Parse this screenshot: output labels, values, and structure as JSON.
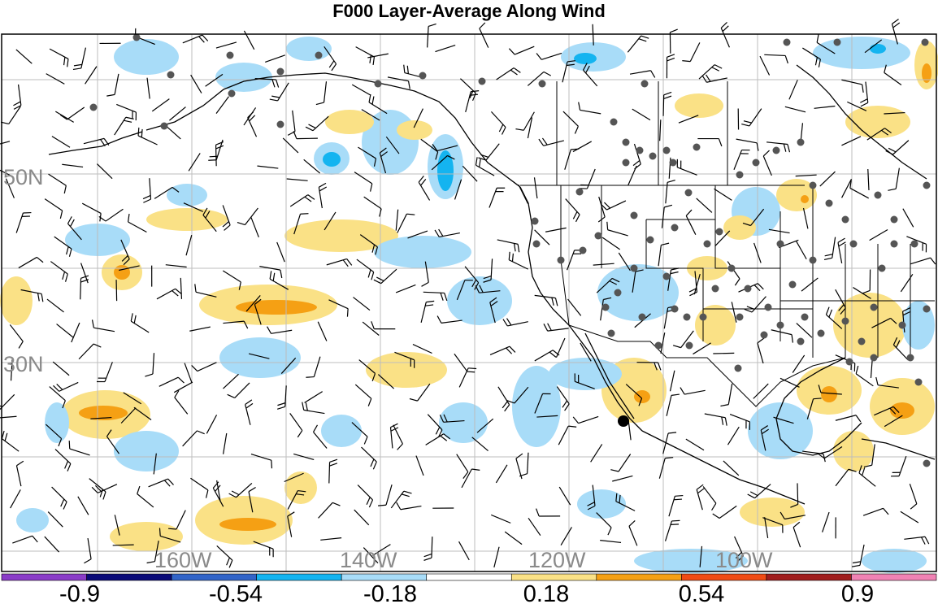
{
  "title": "F000 Layer-Average Along Wind",
  "lat_labels": [
    "50N",
    "30N"
  ],
  "lon_labels": [
    "160W",
    "140W",
    "120W",
    "100W"
  ],
  "colorbar": {
    "labels": [
      "-0.9",
      "-0.54",
      "-0.18",
      "0.18",
      "0.54",
      "0.9"
    ],
    "colors": [
      "#8a3cc8",
      "#0a0a78",
      "#3264c8",
      "#14b4f0",
      "#a8dcf8",
      "#ffffff",
      "#fae186",
      "#f5a014",
      "#f04b14",
      "#a01e1e",
      "#f082b4"
    ]
  },
  "shading_colors": {
    "light_blue": "#a8dcf8",
    "mid_blue": "#14b4f0",
    "light_yellow": "#fae186",
    "orange": "#f5a014"
  }
}
